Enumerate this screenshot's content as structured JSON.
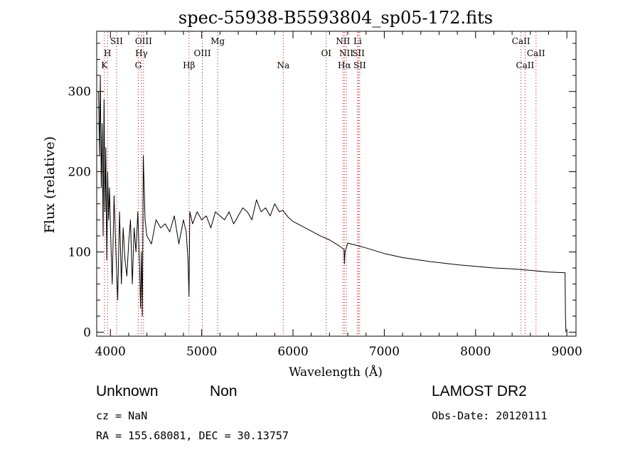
{
  "chart_data": {
    "type": "line",
    "title": "spec-55938-B5593804_sp05-172.fits",
    "xlabel": "Wavelength (Å)",
    "ylabel": "Flux (relative)",
    "xlim": [
      3850,
      9100
    ],
    "ylim": [
      -5,
      375
    ],
    "x_ticks": [
      4000,
      5000,
      6000,
      7000,
      8000,
      9000
    ],
    "y_ticks": [
      0,
      100,
      200,
      300
    ],
    "grid": false,
    "series": [
      {
        "x": [
          3870,
          3880,
          3890,
          3900,
          3910,
          3920,
          3930,
          3940,
          3950,
          3960,
          3970,
          3980,
          3990,
          4000,
          4020,
          4040,
          4060,
          4080,
          4100,
          4120,
          4140,
          4160,
          4180,
          4200,
          4220,
          4240,
          4260,
          4280,
          4300,
          4320,
          4330,
          4340,
          4350,
          4360,
          4380,
          4400,
          4450,
          4500,
          4550,
          4600,
          4650,
          4700,
          4750,
          4800,
          4830,
          4850,
          4861,
          4870,
          4900,
          4950,
          5000,
          5050,
          5100,
          5150,
          5200,
          5250,
          5300,
          5350,
          5400,
          5450,
          5500,
          5550,
          5600,
          5650,
          5700,
          5750,
          5800,
          5850,
          5890,
          5900,
          5950,
          6000,
          6100,
          6200,
          6300,
          6400,
          6500,
          6560,
          6563,
          6570,
          6600,
          6700,
          6800,
          7000,
          7200,
          7500,
          7800,
          8000,
          8200,
          8400,
          8600,
          8800,
          8980,
          8985,
          8990
        ],
        "y": [
          300,
          220,
          320,
          180,
          260,
          120,
          290,
          150,
          230,
          90,
          200,
          140,
          180,
          130,
          60,
          170,
          100,
          40,
          150,
          60,
          130,
          90,
          70,
          110,
          140,
          60,
          130,
          100,
          150,
          80,
          30,
          100,
          20,
          220,
          140,
          120,
          110,
          140,
          130,
          135,
          125,
          145,
          110,
          140,
          125,
          90,
          45,
          150,
          135,
          150,
          140,
          145,
          130,
          150,
          145,
          140,
          150,
          135,
          145,
          155,
          150,
          140,
          165,
          150,
          155,
          145,
          160,
          150,
          152,
          150,
          143,
          138,
          132,
          126,
          120,
          115,
          108,
          103,
          85,
          100,
          111,
          108,
          105,
          98,
          93,
          88,
          84,
          82,
          80,
          79,
          77,
          75,
          74,
          20,
          0
        ]
      }
    ],
    "lines": [
      {
        "label": "K",
        "x": 3934,
        "row": 3
      },
      {
        "label": "H",
        "x": 3969,
        "row": 2
      },
      {
        "label": "SII",
        "x": 4068,
        "row": 1
      },
      {
        "label": "OIII",
        "x": 4363,
        "row": 1
      },
      {
        "label": "Hγ",
        "x": 4340,
        "row": 2
      },
      {
        "label": "G",
        "x": 4305,
        "row": 3
      },
      {
        "label": "Hβ",
        "x": 4861,
        "row": 3
      },
      {
        "label": "OIII",
        "x": 5007,
        "row": 2
      },
      {
        "label": "Mg",
        "x": 5175,
        "row": 1
      },
      {
        "label": "Na",
        "x": 5893,
        "row": 3
      },
      {
        "label": "OI",
        "x": 6364,
        "row": 2
      },
      {
        "label": "NII",
        "x": 6548,
        "row": 1
      },
      {
        "label": "Li",
        "x": 6708,
        "row": 1
      },
      {
        "label": "NII",
        "x": 6584,
        "row": 2
      },
      {
        "label": "SII",
        "x": 6717,
        "row": 2
      },
      {
        "label": "Hα",
        "x": 6563,
        "row": 3
      },
      {
        "label": "SII",
        "x": 6731,
        "row": 3
      },
      {
        "label": "CaII",
        "x": 8498,
        "row": 1
      },
      {
        "label": "CaII",
        "x": 8662,
        "row": 2
      },
      {
        "label": "CaII",
        "x": 8542,
        "row": 3
      }
    ],
    "line_color": "#cc0000"
  },
  "info": {
    "class_label": "Unknown",
    "subclass_label": "Non",
    "survey": "LAMOST DR2",
    "redshift": "cz = NaN",
    "obs_date": "Obs-Date: 20120111",
    "coords": "RA = 155.68081, DEC =  30.13757"
  }
}
